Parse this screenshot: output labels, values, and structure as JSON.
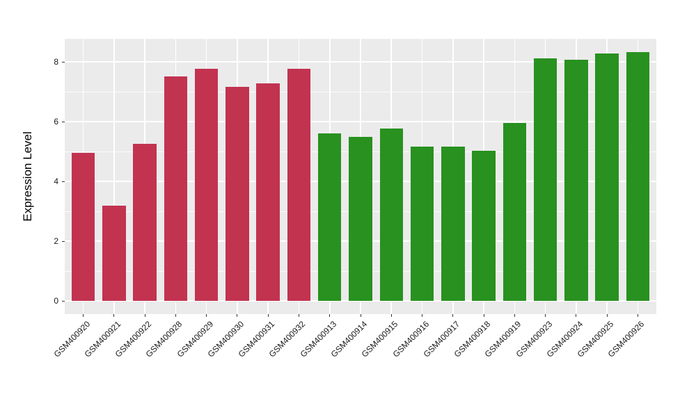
{
  "figure": {
    "background_color": "#FFFFFF",
    "panel_background_color": "#EBEBEB",
    "gridline_color": "#FFFFFF",
    "tick_mark_color": "#333333",
    "axis_text_color": "#1A1A1A"
  },
  "chart_data": {
    "type": "bar",
    "title": "",
    "xlabel": "",
    "ylabel": "Expression Level",
    "categories": [
      "GSM400920",
      "GSM400921",
      "GSM400922",
      "GSM400928",
      "GSM400929",
      "GSM400930",
      "GSM400931",
      "GSM400932",
      "GSM400913",
      "GSM400914",
      "GSM400915",
      "GSM400916",
      "GSM400917",
      "GSM400918",
      "GSM400919",
      "GSM400923",
      "GSM400924",
      "GSM400925",
      "GSM400926"
    ],
    "values": [
      4.95,
      3.19,
      5.26,
      7.51,
      7.77,
      7.16,
      7.28,
      7.77,
      5.6,
      5.49,
      5.77,
      5.16,
      5.16,
      5.02,
      5.95,
      8.12,
      8.07,
      8.28,
      8.33
    ],
    "colors": [
      "#C23350",
      "#C23350",
      "#C23350",
      "#C23350",
      "#C23350",
      "#C23350",
      "#C23350",
      "#C23350",
      "#28911F",
      "#28911F",
      "#28911F",
      "#28911F",
      "#28911F",
      "#28911F",
      "#28911F",
      "#28911F",
      "#28911F",
      "#28911F",
      "#28911F"
    ],
    "group_colors": {
      "red_group": "#C23350",
      "green_group": "#28911F"
    },
    "yticks": [
      0,
      2,
      4,
      6,
      8
    ],
    "ytick_labels": [
      "0",
      "2",
      "4",
      "6",
      "8"
    ],
    "minor_gridlines": [
      1,
      3,
      5,
      7
    ],
    "ylim": [
      -0.44,
      8.77
    ],
    "grid": true,
    "legend": "none",
    "x_label_rotation_deg": 45
  }
}
